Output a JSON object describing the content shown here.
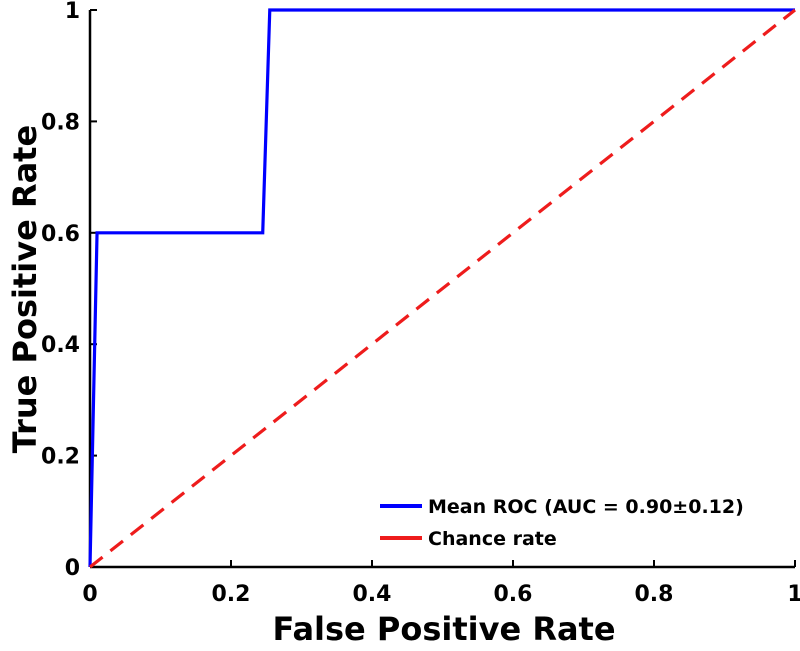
{
  "chart_data": {
    "type": "line",
    "title": "",
    "xlabel": "False Positive Rate",
    "ylabel": "True Positive Rate",
    "xlim": [
      0,
      1
    ],
    "ylim": [
      0,
      1
    ],
    "xticks": [
      "0",
      "0.2",
      "0.4",
      "0.6",
      "0.8",
      "1"
    ],
    "yticks": [
      "0",
      "0.2",
      "0.4",
      "0.6",
      "0.8",
      "1"
    ],
    "grid": false,
    "legend_position": "bottom-right",
    "series": [
      {
        "name": "Mean ROC (AUC = 0.90±0.12)",
        "color": "#0000ff",
        "style": "solid",
        "x": [
          0,
          0.01,
          0.245,
          0.255,
          1
        ],
        "y": [
          0,
          0.6,
          0.6,
          1,
          1
        ]
      },
      {
        "name": "Chance rate",
        "color": "#ee1c1c",
        "style": "dashed",
        "x": [
          0,
          1
        ],
        "y": [
          0,
          1
        ]
      }
    ]
  }
}
